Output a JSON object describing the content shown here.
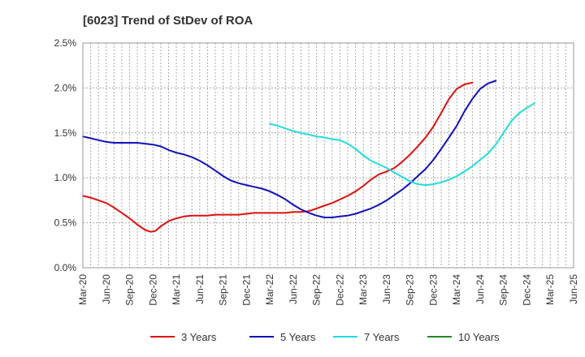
{
  "chart_data": {
    "type": "line",
    "title": "[6023]  Trend of StDev of ROA",
    "xlabel": "",
    "ylabel": "",
    "ylim": [
      0,
      2.5
    ],
    "yticks": [
      "0.0%",
      "0.5%",
      "1.0%",
      "1.5%",
      "2.0%",
      "2.5%"
    ],
    "categories": [
      "Mar-20",
      "Jun-20",
      "Sep-20",
      "Dec-20",
      "Mar-21",
      "Jun-21",
      "Sep-21",
      "Dec-21",
      "Mar-22",
      "Jun-22",
      "Sep-22",
      "Dec-22",
      "Mar-23",
      "Jun-23",
      "Sep-23",
      "Dec-23",
      "Mar-24",
      "Jun-24",
      "Sep-24",
      "Dec-24",
      "Mar-25",
      "Jun-25"
    ],
    "grid": true,
    "legend_position": "bottom",
    "series": [
      {
        "name": "3 Years",
        "color": "#dd1111",
        "points": [
          [
            0,
            0.8
          ],
          [
            0.33,
            0.78
          ],
          [
            0.67,
            0.75
          ],
          [
            1,
            0.72
          ],
          [
            1.33,
            0.67
          ],
          [
            1.67,
            0.61
          ],
          [
            2,
            0.55
          ],
          [
            2.33,
            0.48
          ],
          [
            2.67,
            0.42
          ],
          [
            2.9,
            0.4
          ],
          [
            3.1,
            0.41
          ],
          [
            3.33,
            0.46
          ],
          [
            3.67,
            0.52
          ],
          [
            4,
            0.55
          ],
          [
            4.33,
            0.57
          ],
          [
            4.67,
            0.58
          ],
          [
            5,
            0.58
          ],
          [
            5.33,
            0.58
          ],
          [
            5.67,
            0.59
          ],
          [
            6,
            0.59
          ],
          [
            6.33,
            0.59
          ],
          [
            6.67,
            0.59
          ],
          [
            7,
            0.6
          ],
          [
            7.33,
            0.61
          ],
          [
            7.67,
            0.61
          ],
          [
            8,
            0.61
          ],
          [
            8.33,
            0.61
          ],
          [
            8.67,
            0.61
          ],
          [
            9,
            0.62
          ],
          [
            9.33,
            0.62
          ],
          [
            9.67,
            0.63
          ],
          [
            10,
            0.66
          ],
          [
            10.33,
            0.69
          ],
          [
            10.67,
            0.72
          ],
          [
            11,
            0.76
          ],
          [
            11.33,
            0.8
          ],
          [
            11.67,
            0.85
          ],
          [
            12,
            0.91
          ],
          [
            12.33,
            0.98
          ],
          [
            12.67,
            1.04
          ],
          [
            13,
            1.07
          ],
          [
            13.33,
            1.11
          ],
          [
            13.67,
            1.18
          ],
          [
            14,
            1.26
          ],
          [
            14.33,
            1.35
          ],
          [
            14.67,
            1.45
          ],
          [
            15,
            1.57
          ],
          [
            15.33,
            1.72
          ],
          [
            15.67,
            1.88
          ],
          [
            16,
            1.99
          ],
          [
            16.33,
            2.04
          ],
          [
            16.67,
            2.06
          ]
        ]
      },
      {
        "name": "5 Years",
        "color": "#1111bb",
        "points": [
          [
            0,
            1.46
          ],
          [
            0.33,
            1.44
          ],
          [
            0.67,
            1.42
          ],
          [
            1,
            1.4
          ],
          [
            1.33,
            1.39
          ],
          [
            1.67,
            1.39
          ],
          [
            2,
            1.39
          ],
          [
            2.33,
            1.39
          ],
          [
            2.67,
            1.38
          ],
          [
            3,
            1.37
          ],
          [
            3.33,
            1.35
          ],
          [
            3.67,
            1.31
          ],
          [
            4,
            1.28
          ],
          [
            4.33,
            1.26
          ],
          [
            4.67,
            1.23
          ],
          [
            5,
            1.19
          ],
          [
            5.33,
            1.14
          ],
          [
            5.67,
            1.08
          ],
          [
            6,
            1.02
          ],
          [
            6.33,
            0.97
          ],
          [
            6.67,
            0.94
          ],
          [
            7,
            0.92
          ],
          [
            7.33,
            0.9
          ],
          [
            7.67,
            0.88
          ],
          [
            8,
            0.85
          ],
          [
            8.33,
            0.81
          ],
          [
            8.67,
            0.76
          ],
          [
            9,
            0.7
          ],
          [
            9.33,
            0.65
          ],
          [
            9.67,
            0.61
          ],
          [
            10,
            0.58
          ],
          [
            10.33,
            0.56
          ],
          [
            10.67,
            0.56
          ],
          [
            11,
            0.57
          ],
          [
            11.33,
            0.58
          ],
          [
            11.67,
            0.6
          ],
          [
            12,
            0.63
          ],
          [
            12.33,
            0.66
          ],
          [
            12.67,
            0.7
          ],
          [
            13,
            0.75
          ],
          [
            13.33,
            0.81
          ],
          [
            13.67,
            0.87
          ],
          [
            14,
            0.94
          ],
          [
            14.33,
            1.02
          ],
          [
            14.67,
            1.1
          ],
          [
            15,
            1.2
          ],
          [
            15.33,
            1.32
          ],
          [
            15.67,
            1.45
          ],
          [
            16,
            1.58
          ],
          [
            16.33,
            1.74
          ],
          [
            16.67,
            1.88
          ],
          [
            17,
            1.99
          ],
          [
            17.33,
            2.05
          ],
          [
            17.67,
            2.08
          ]
        ]
      },
      {
        "name": "7 Years",
        "color": "#22dddd",
        "points": [
          [
            8,
            1.6
          ],
          [
            8.33,
            1.58
          ],
          [
            8.67,
            1.55
          ],
          [
            9,
            1.52
          ],
          [
            9.33,
            1.5
          ],
          [
            9.67,
            1.48
          ],
          [
            10,
            1.46
          ],
          [
            10.33,
            1.45
          ],
          [
            10.67,
            1.43
          ],
          [
            11,
            1.42
          ],
          [
            11.33,
            1.38
          ],
          [
            11.67,
            1.32
          ],
          [
            12,
            1.25
          ],
          [
            12.33,
            1.19
          ],
          [
            12.67,
            1.15
          ],
          [
            13,
            1.11
          ],
          [
            13.33,
            1.06
          ],
          [
            13.67,
            1.01
          ],
          [
            14,
            0.96
          ],
          [
            14.33,
            0.93
          ],
          [
            14.67,
            0.92
          ],
          [
            15,
            0.93
          ],
          [
            15.33,
            0.95
          ],
          [
            15.67,
            0.98
          ],
          [
            16,
            1.02
          ],
          [
            16.33,
            1.07
          ],
          [
            16.67,
            1.13
          ],
          [
            17,
            1.2
          ],
          [
            17.33,
            1.27
          ],
          [
            17.67,
            1.37
          ],
          [
            18,
            1.5
          ],
          [
            18.33,
            1.63
          ],
          [
            18.67,
            1.72
          ],
          [
            19,
            1.78
          ],
          [
            19.33,
            1.83
          ]
        ]
      },
      {
        "name": "10 Years",
        "color": "#228822",
        "points": []
      }
    ]
  }
}
